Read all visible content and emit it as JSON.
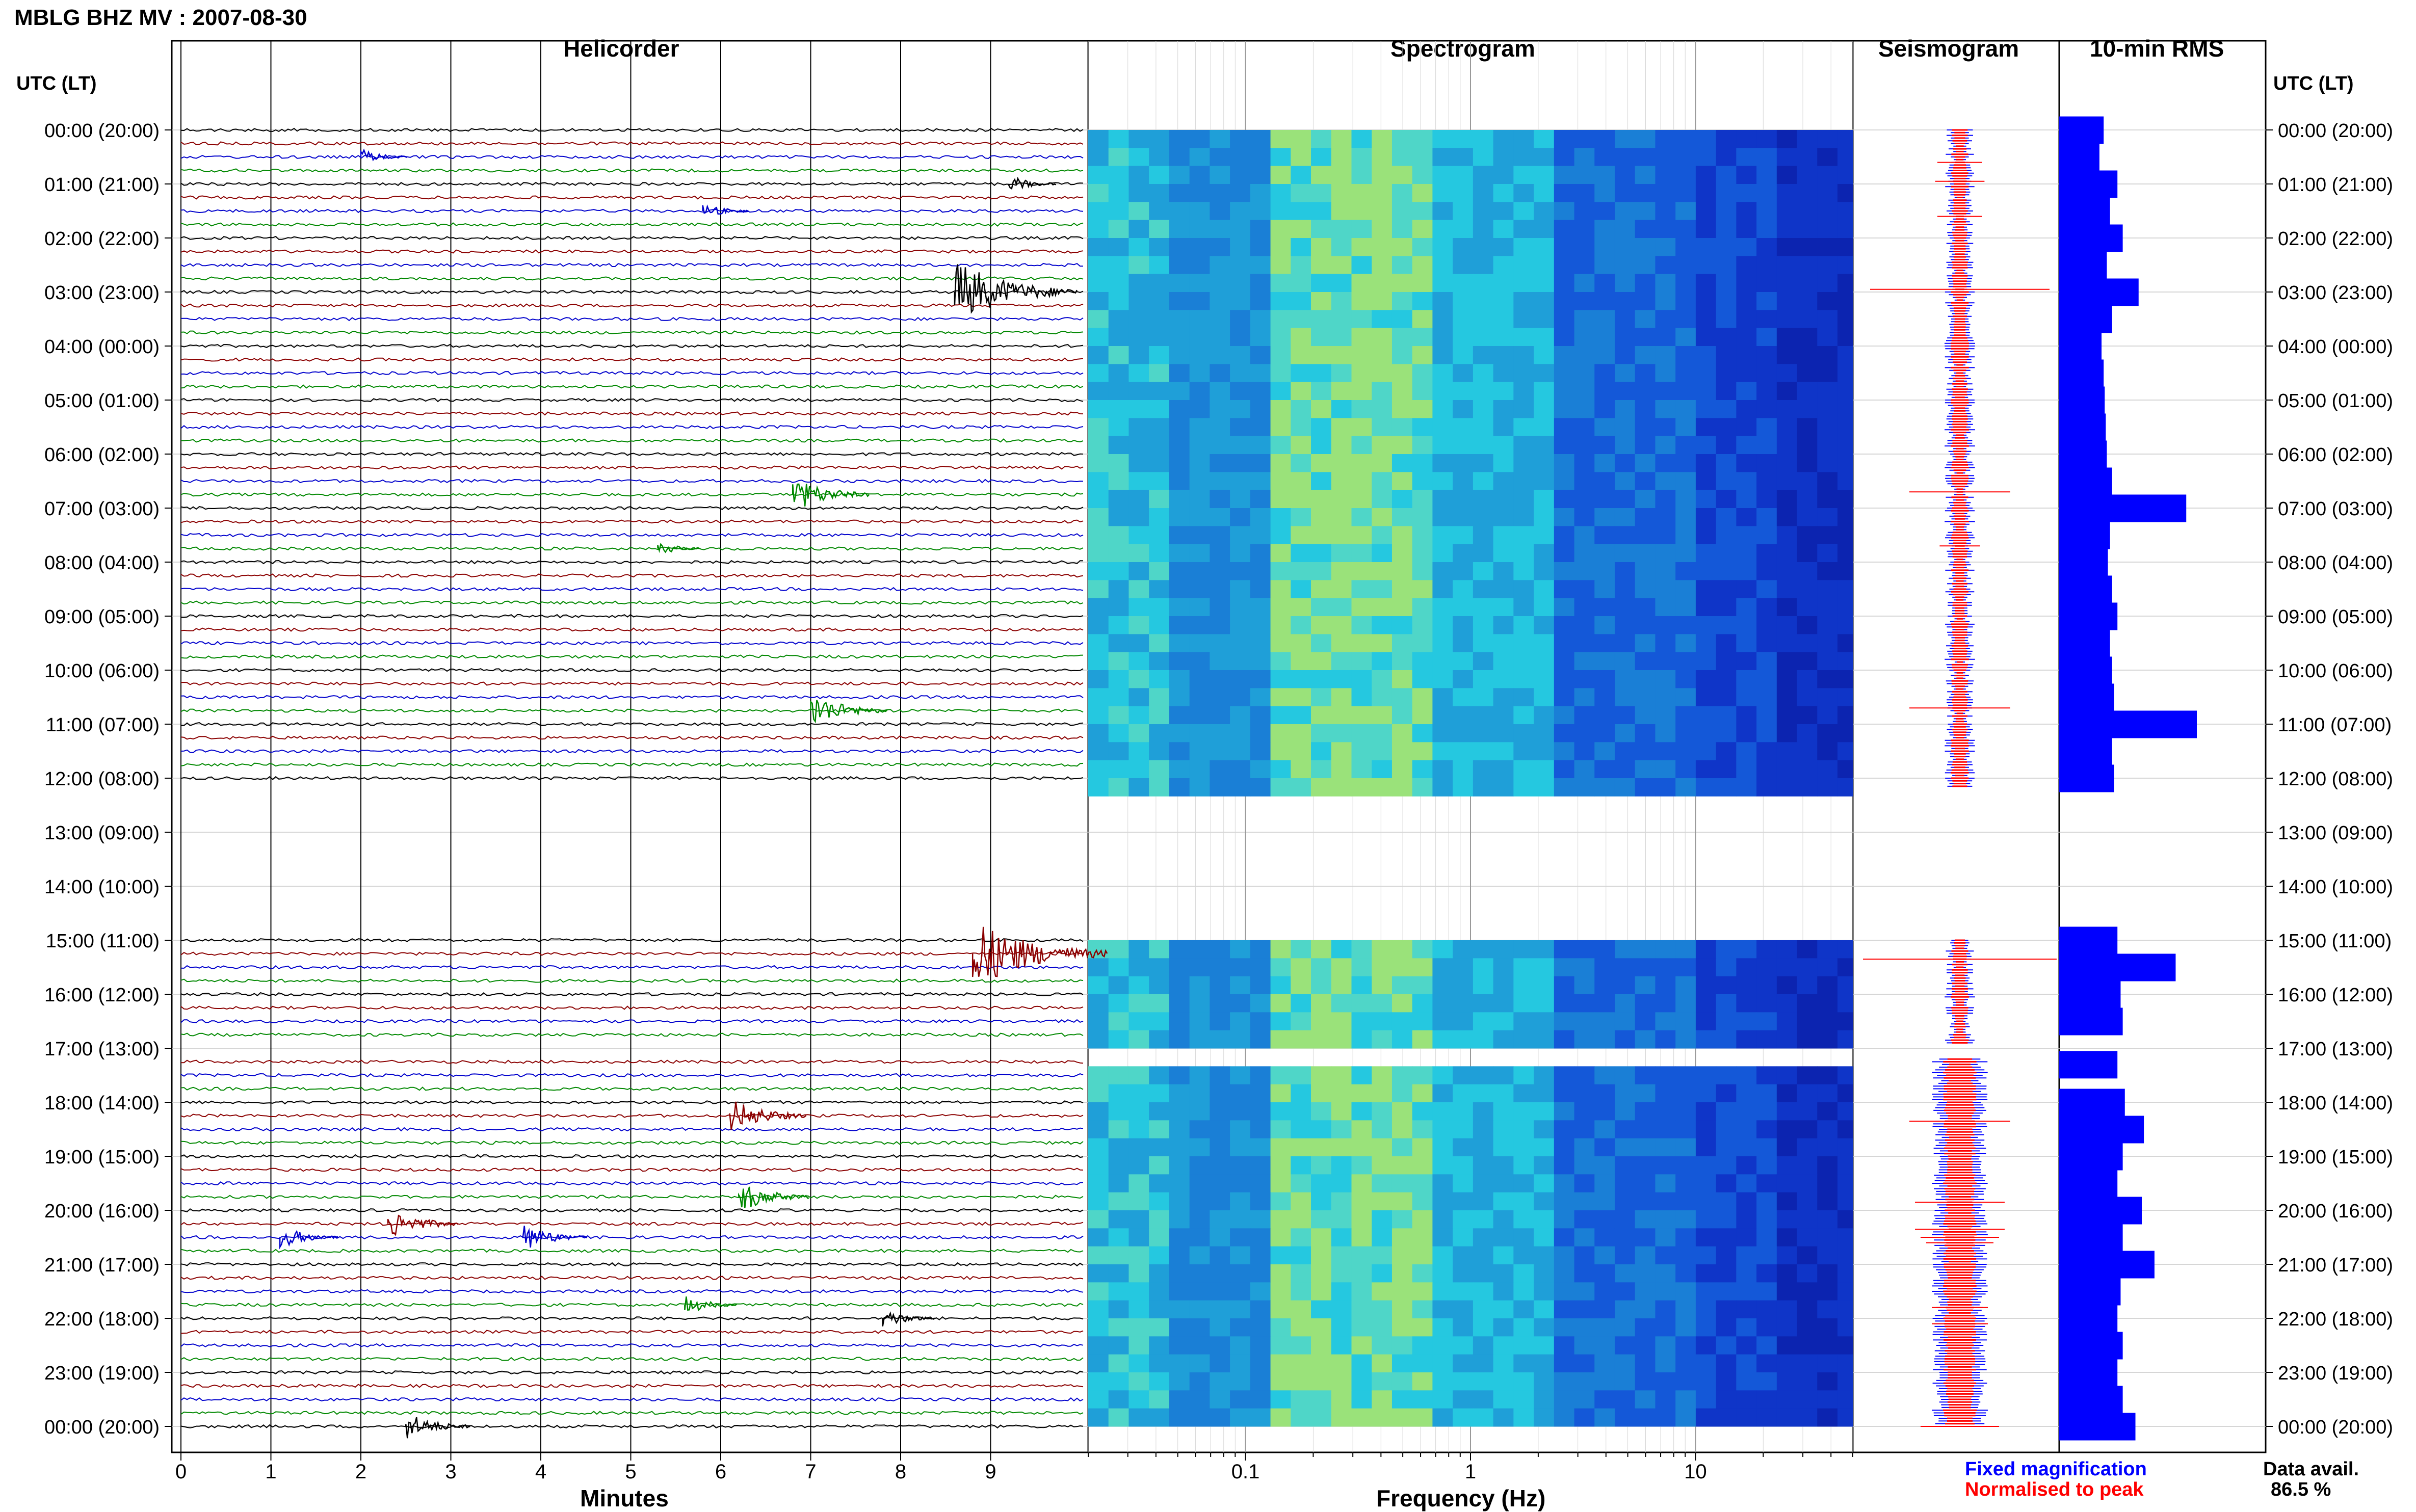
{
  "header": {
    "title": "MBLG BHZ MV : 2007-08-30"
  },
  "panels": {
    "helicorder": "Helicorder",
    "spectrogram": "Spectrogram",
    "seismogram": "Seismogram",
    "rms": "10-min RMS"
  },
  "axis": {
    "time_label_left": "UTC (LT)",
    "time_label_right": "UTC (LT)",
    "x_minutes": "Minutes",
    "x_frequency": "Frequency (Hz)"
  },
  "legend": {
    "fixed": "Fixed magnification",
    "normalised": "Normalised to peak",
    "fixed_color": "#0000ff",
    "normalised_color": "#ff0000"
  },
  "data_availability": {
    "label": "Data avail.",
    "value": "86.5 %"
  },
  "chart_data": {
    "type": "helicorder",
    "hours": [
      "00:00 (20:00)",
      "01:00 (21:00)",
      "02:00 (22:00)",
      "03:00 (23:00)",
      "04:00 (00:00)",
      "05:00 (01:00)",
      "06:00 (02:00)",
      "07:00 (03:00)",
      "08:00 (04:00)",
      "09:00 (05:00)",
      "10:00 (06:00)",
      "11:00 (07:00)",
      "12:00 (08:00)",
      "13:00 (09:00)",
      "14:00 (10:00)",
      "15:00 (11:00)",
      "16:00 (12:00)",
      "17:00 (13:00)",
      "18:00 (14:00)",
      "19:00 (15:00)",
      "20:00 (16:00)",
      "21:00 (17:00)",
      "22:00 (18:00)",
      "23:00 (19:00)",
      "00:00 (20:00)"
    ],
    "minute_ticks": [
      "0",
      "1",
      "2",
      "3",
      "4",
      "5",
      "6",
      "7",
      "8",
      "9"
    ],
    "freq_ticks": [
      {
        "label": "0.1",
        "value": 0.1
      },
      {
        "label": "1",
        "value": 1
      },
      {
        "label": "10",
        "value": 10
      }
    ],
    "freq_range": [
      0.02,
      50
    ],
    "trace_colors": [
      "#000000",
      "#8b0000",
      "#0000cc",
      "#008800"
    ],
    "data_gaps_hours": [
      [
        12.2,
        15.0
      ],
      [
        16.95,
        17.2
      ]
    ],
    "events": [
      {
        "hour": 0.6,
        "minute": 2.0,
        "amp": 2.0
      },
      {
        "hour": 0.95,
        "minute": 9.2,
        "amp": 2.2
      },
      {
        "hour": 1.6,
        "minute": 5.8,
        "amp": 2.0
      },
      {
        "hour": 2.95,
        "minute": 8.6,
        "amp": 8.0
      },
      {
        "hour": 6.7,
        "minute": 6.8,
        "amp": 4.5
      },
      {
        "hour": 7.7,
        "minute": 5.3,
        "amp": 1.8
      },
      {
        "hour": 10.7,
        "minute": 7.0,
        "amp": 4.5
      },
      {
        "hour": 15.35,
        "minute": 8.8,
        "amp": 9.0
      },
      {
        "hour": 18.35,
        "minute": 6.1,
        "amp": 4.5
      },
      {
        "hour": 19.85,
        "minute": 6.2,
        "amp": 4.0
      },
      {
        "hour": 20.35,
        "minute": 2.3,
        "amp": 4.0
      },
      {
        "hour": 20.5,
        "minute": 3.8,
        "amp": 3.5
      },
      {
        "hour": 20.6,
        "minute": 1.1,
        "amp": 3.0
      },
      {
        "hour": 21.8,
        "minute": 5.6,
        "amp": 2.5
      },
      {
        "hour": 22.1,
        "minute": 7.8,
        "amp": 2.5
      },
      {
        "hour": 24.0,
        "minute": 2.5,
        "amp": 3.5
      }
    ],
    "rms_values": [
      {
        "hour": 0.0,
        "value": 0.42
      },
      {
        "hour": 0.5,
        "value": 0.38
      },
      {
        "hour": 1.0,
        "value": 0.55
      },
      {
        "hour": 1.5,
        "value": 0.48
      },
      {
        "hour": 2.0,
        "value": 0.6
      },
      {
        "hour": 2.5,
        "value": 0.45
      },
      {
        "hour": 3.0,
        "value": 0.75
      },
      {
        "hour": 3.5,
        "value": 0.5
      },
      {
        "hour": 4.0,
        "value": 0.4
      },
      {
        "hour": 4.5,
        "value": 0.42
      },
      {
        "hour": 5.0,
        "value": 0.43
      },
      {
        "hour": 5.5,
        "value": 0.44
      },
      {
        "hour": 6.0,
        "value": 0.45
      },
      {
        "hour": 6.5,
        "value": 0.5
      },
      {
        "hour": 7.0,
        "value": 1.2
      },
      {
        "hour": 7.5,
        "value": 0.48
      },
      {
        "hour": 8.0,
        "value": 0.46
      },
      {
        "hour": 8.5,
        "value": 0.5
      },
      {
        "hour": 9.0,
        "value": 0.55
      },
      {
        "hour": 9.5,
        "value": 0.48
      },
      {
        "hour": 10.0,
        "value": 0.5
      },
      {
        "hour": 10.5,
        "value": 0.52
      },
      {
        "hour": 11.0,
        "value": 1.3
      },
      {
        "hour": 11.5,
        "value": 0.5
      },
      {
        "hour": 12.0,
        "value": 0.52
      },
      {
        "hour": 15.0,
        "value": 0.55
      },
      {
        "hour": 15.5,
        "value": 1.1
      },
      {
        "hour": 16.0,
        "value": 0.58
      },
      {
        "hour": 16.5,
        "value": 0.6
      },
      {
        "hour": 17.3,
        "value": 0.55
      },
      {
        "hour": 18.0,
        "value": 0.62
      },
      {
        "hour": 18.5,
        "value": 0.8
      },
      {
        "hour": 19.0,
        "value": 0.6
      },
      {
        "hour": 19.5,
        "value": 0.55
      },
      {
        "hour": 20.0,
        "value": 0.78
      },
      {
        "hour": 20.5,
        "value": 0.6
      },
      {
        "hour": 21.0,
        "value": 0.9
      },
      {
        "hour": 21.5,
        "value": 0.58
      },
      {
        "hour": 22.0,
        "value": 0.55
      },
      {
        "hour": 22.5,
        "value": 0.6
      },
      {
        "hour": 23.0,
        "value": 0.55
      },
      {
        "hour": 23.5,
        "value": 0.6
      },
      {
        "hour": 24.0,
        "value": 0.72
      }
    ]
  }
}
